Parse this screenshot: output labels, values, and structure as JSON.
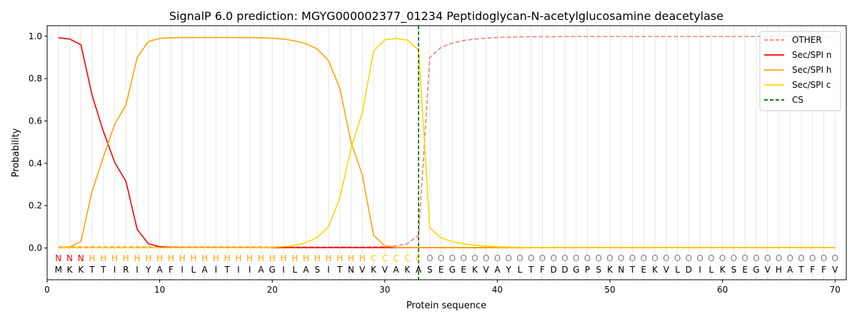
{
  "chart_data": {
    "type": "line",
    "title": "SignalP 6.0 prediction: MGYG000002377_01234 Peptidoglycan-N-acetylglucosamine deacetylase",
    "xlabel": "Protein sequence",
    "ylabel": "Probability",
    "xlim": [
      0,
      71
    ],
    "ylim": [
      -0.15,
      1.05
    ],
    "x_ticks": [
      0,
      10,
      20,
      30,
      40,
      50,
      60,
      70
    ],
    "y_ticks": [
      0.0,
      0.2,
      0.4,
      0.6,
      0.8,
      1.0
    ],
    "grid": "vertical lines at each residue position",
    "legend_position": "top-right",
    "sequence": [
      "M",
      "K",
      "K",
      "T",
      "T",
      "I",
      "R",
      "I",
      "Y",
      "A",
      "F",
      "I",
      "L",
      "A",
      "I",
      "T",
      "I",
      "I",
      "A",
      "G",
      "I",
      "L",
      "A",
      "S",
      "I",
      "T",
      "N",
      "V",
      "K",
      "V",
      "A",
      "K",
      "A",
      "S",
      "E",
      "G",
      "E",
      "K",
      "V",
      "A",
      "Y",
      "L",
      "T",
      "F",
      "D",
      "D",
      "G",
      "P",
      "S",
      "K",
      "N",
      "T",
      "E",
      "K",
      "V",
      "L",
      "D",
      "I",
      "L",
      "K",
      "S",
      "E",
      "G",
      "V",
      "H",
      "A",
      "T",
      "F",
      "F",
      "V"
    ],
    "region_labels": [
      "N",
      "N",
      "N",
      "H",
      "H",
      "H",
      "H",
      "H",
      "H",
      "H",
      "H",
      "H",
      "H",
      "H",
      "H",
      "H",
      "H",
      "H",
      "H",
      "H",
      "H",
      "H",
      "H",
      "H",
      "H",
      "H",
      "H",
      "H",
      "C",
      "C",
      "C",
      "C",
      "C",
      "O",
      "O",
      "O",
      "O",
      "O",
      "O",
      "O",
      "O",
      "O",
      "O",
      "O",
      "O",
      "O",
      "O",
      "O",
      "O",
      "O",
      "O",
      "O",
      "O",
      "O",
      "O",
      "O",
      "O",
      "O",
      "O",
      "O",
      "O",
      "O",
      "O",
      "O",
      "O",
      "O",
      "O",
      "O",
      "O",
      "O"
    ],
    "region_colors": {
      "N": "#ff0000",
      "H": "#ffa500",
      "C": "#ffd700",
      "O": "#808080"
    },
    "series": [
      {
        "name": "OTHER",
        "color": "#f08080",
        "style": "dashed",
        "values": [
          0.005,
          0.005,
          0.005,
          0.005,
          0.005,
          0.005,
          0.005,
          0.005,
          0.005,
          0.005,
          0.005,
          0.005,
          0.005,
          0.005,
          0.005,
          0.005,
          0.005,
          0.005,
          0.005,
          0.005,
          0.005,
          0.005,
          0.005,
          0.005,
          0.005,
          0.005,
          0.005,
          0.005,
          0.005,
          0.007,
          0.01,
          0.02,
          0.06,
          0.9,
          0.948,
          0.968,
          0.98,
          0.987,
          0.991,
          0.994,
          0.996,
          0.997,
          0.998,
          0.998,
          0.998,
          0.999,
          0.999,
          0.999,
          0.999,
          0.999,
          0.999,
          0.999,
          0.999,
          0.999,
          0.999,
          0.999,
          0.999,
          0.999,
          0.999,
          0.999,
          0.999,
          0.999,
          0.999,
          0.999,
          0.999,
          0.999,
          0.999,
          0.999,
          0.999,
          0.999
        ]
      },
      {
        "name": "Sec/SPI n",
        "color": "#ff0000",
        "style": "solid",
        "values": [
          0.993,
          0.987,
          0.96,
          0.72,
          0.55,
          0.405,
          0.315,
          0.088,
          0.02,
          0.006,
          0.003,
          0.002,
          0.002,
          0.002,
          0.002,
          0.002,
          0.002,
          0.002,
          0.002,
          0.002,
          0.002,
          0.002,
          0.002,
          0.002,
          0.002,
          0.002,
          0.002,
          0.002,
          0.002,
          0.002,
          0.002,
          0.002,
          0.002,
          0.002,
          0.002,
          0.002,
          0.002,
          0.002,
          0.002,
          0.002,
          0.002,
          0.002,
          0.002,
          0.002,
          0.002,
          0.002,
          0.002,
          0.002,
          0.002,
          0.002,
          0.002,
          0.002,
          0.002,
          0.002,
          0.002,
          0.002,
          0.002,
          0.002,
          0.002,
          0.002,
          0.002,
          0.002,
          0.002,
          0.002,
          0.002,
          0.002,
          0.002,
          0.002,
          0.002,
          0.002
        ]
      },
      {
        "name": "Sec/SPI h",
        "color": "#ffa500",
        "style": "solid",
        "values": [
          0.002,
          0.005,
          0.03,
          0.27,
          0.43,
          0.585,
          0.675,
          0.9,
          0.975,
          0.99,
          0.993,
          0.994,
          0.994,
          0.994,
          0.994,
          0.994,
          0.994,
          0.994,
          0.993,
          0.991,
          0.987,
          0.978,
          0.965,
          0.94,
          0.885,
          0.755,
          0.5,
          0.345,
          0.06,
          0.01,
          0.003,
          0.002,
          0.002,
          0.002,
          0.002,
          0.002,
          0.002,
          0.002,
          0.002,
          0.002,
          0.002,
          0.002,
          0.002,
          0.002,
          0.002,
          0.002,
          0.002,
          0.002,
          0.002,
          0.002,
          0.002,
          0.002,
          0.002,
          0.002,
          0.002,
          0.002,
          0.002,
          0.002,
          0.002,
          0.002,
          0.002,
          0.002,
          0.002,
          0.002,
          0.002,
          0.002,
          0.002,
          0.002,
          0.002,
          0.002
        ]
      },
      {
        "name": "Sec/SPI c",
        "color": "#ffd700",
        "style": "solid",
        "values": [
          0.001,
          0.001,
          0.001,
          0.001,
          0.001,
          0.001,
          0.001,
          0.001,
          0.001,
          0.001,
          0.001,
          0.001,
          0.001,
          0.001,
          0.001,
          0.001,
          0.001,
          0.001,
          0.002,
          0.003,
          0.007,
          0.012,
          0.025,
          0.05,
          0.1,
          0.235,
          0.47,
          0.64,
          0.93,
          0.983,
          0.99,
          0.982,
          0.935,
          0.095,
          0.048,
          0.03,
          0.02,
          0.013,
          0.009,
          0.006,
          0.004,
          0.003,
          0.002,
          0.002,
          0.001,
          0.001,
          0.001,
          0.001,
          0.001,
          0.001,
          0.001,
          0.001,
          0.001,
          0.001,
          0.001,
          0.001,
          0.001,
          0.001,
          0.001,
          0.001,
          0.001,
          0.001,
          0.001,
          0.001,
          0.001,
          0.001,
          0.001,
          0.001,
          0.001,
          0.001
        ]
      }
    ],
    "cs_marker": {
      "name": "CS",
      "x": 33,
      "color": "#006400",
      "style": "dashed"
    }
  }
}
